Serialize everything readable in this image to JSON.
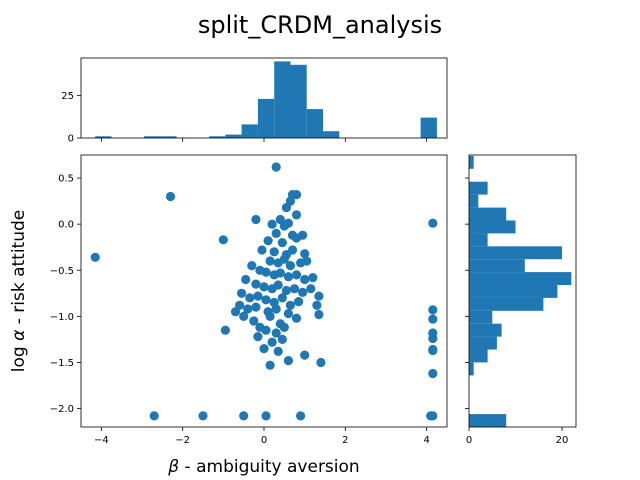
{
  "title": "split_CRDM_analysis",
  "colors": {
    "accent": "#1f77b4",
    "axes": "#000000",
    "background": "#ffffff"
  },
  "chart_data": [
    {
      "type": "scatter",
      "name": "main",
      "xlabel_symbol": "β",
      "xlabel_text": " - ambiguity aversion",
      "ylabel_prefix": "log ",
      "ylabel_symbol": "α",
      "ylabel_text": " - risk attitude",
      "xlim": [
        -4.5,
        4.5
      ],
      "ylim": [
        -2.2,
        0.75
      ],
      "xticks": [
        -4,
        -2,
        0,
        2,
        4
      ],
      "xtick_labels": [
        "−4",
        "−2",
        "0",
        "2",
        "4"
      ],
      "yticks": [
        0.5,
        0.0,
        -0.5,
        -1.0,
        -1.5,
        -2.0
      ],
      "ytick_labels": [
        "0.5",
        "0.0",
        "−0.5",
        "−1.0",
        "−1.5",
        "−2.0"
      ],
      "grid": false,
      "points": [
        [
          -4.15,
          -0.36
        ],
        [
          -2.3,
          0.3
        ],
        [
          -2.7,
          -2.08
        ],
        [
          -1.5,
          -2.08
        ],
        [
          -0.5,
          -2.08
        ],
        [
          0.05,
          -2.08
        ],
        [
          0.9,
          -2.08
        ],
        [
          -1.0,
          -0.17
        ],
        [
          -0.95,
          -1.15
        ],
        [
          0.3,
          0.62
        ],
        [
          4.15,
          0.01
        ],
        [
          4.15,
          -0.93
        ],
        [
          4.15,
          -1.03
        ],
        [
          4.15,
          -1.18
        ],
        [
          4.15,
          -1.24
        ],
        [
          4.15,
          -1.36
        ],
        [
          4.15,
          -1.37
        ],
        [
          4.15,
          -1.62
        ],
        [
          4.15,
          -2.08
        ],
        [
          4.1,
          -2.08
        ],
        [
          -0.2,
          0.05
        ],
        [
          0.55,
          0.18
        ],
        [
          0.7,
          0.32
        ],
        [
          0.8,
          0.32
        ],
        [
          0.65,
          0.25
        ],
        [
          0.8,
          0.1
        ],
        [
          0.2,
          0.0
        ],
        [
          0.4,
          0.05
        ],
        [
          0.5,
          -0.02
        ],
        [
          0.6,
          0.01
        ],
        [
          0.3,
          -0.1
        ],
        [
          0.7,
          -0.12
        ],
        [
          0.1,
          -0.18
        ],
        [
          0.45,
          -0.2
        ],
        [
          0.8,
          -0.15
        ],
        [
          0.95,
          -0.12
        ],
        [
          -0.05,
          -0.28
        ],
        [
          0.25,
          -0.3
        ],
        [
          0.55,
          -0.33
        ],
        [
          0.7,
          -0.28
        ],
        [
          1.0,
          -0.32
        ],
        [
          0.15,
          -0.4
        ],
        [
          0.35,
          -0.42
        ],
        [
          0.5,
          -0.38
        ],
        [
          0.65,
          -0.45
        ],
        [
          0.9,
          -0.42
        ],
        [
          1.05,
          -0.4
        ],
        [
          -0.3,
          -0.45
        ],
        [
          -0.1,
          -0.5
        ],
        [
          0.05,
          -0.52
        ],
        [
          0.25,
          -0.55
        ],
        [
          0.4,
          -0.53
        ],
        [
          0.6,
          -0.57
        ],
        [
          0.8,
          -0.55
        ],
        [
          1.0,
          -0.6
        ],
        [
          1.2,
          -0.58
        ],
        [
          -0.45,
          -0.6
        ],
        [
          -0.2,
          -0.65
        ],
        [
          0.0,
          -0.68
        ],
        [
          0.2,
          -0.7
        ],
        [
          0.35,
          -0.66
        ],
        [
          0.55,
          -0.72
        ],
        [
          0.75,
          -0.7
        ],
        [
          0.95,
          -0.74
        ],
        [
          1.15,
          -0.7
        ],
        [
          -0.55,
          -0.75
        ],
        [
          -0.35,
          -0.8
        ],
        [
          -0.15,
          -0.78
        ],
        [
          0.05,
          -0.82
        ],
        [
          0.25,
          -0.85
        ],
        [
          0.45,
          -0.8
        ],
        [
          0.65,
          -0.88
        ],
        [
          0.85,
          -0.84
        ],
        [
          1.35,
          -0.78
        ],
        [
          -0.6,
          -0.88
        ],
        [
          -0.4,
          -0.92
        ],
        [
          -0.2,
          -0.9
        ],
        [
          0.1,
          -0.95
        ],
        [
          0.3,
          -0.92
        ],
        [
          0.6,
          -0.97
        ],
        [
          1.3,
          -0.88
        ],
        [
          -0.7,
          -0.95
        ],
        [
          -0.5,
          -1.0
        ],
        [
          -0.25,
          -1.05
        ],
        [
          0.15,
          -1.0
        ],
        [
          0.4,
          -1.08
        ],
        [
          0.8,
          -1.02
        ],
        [
          1.35,
          -0.98
        ],
        [
          -0.1,
          -1.12
        ],
        [
          0.05,
          -1.15
        ],
        [
          0.3,
          -1.18
        ],
        [
          0.5,
          -1.12
        ],
        [
          -0.15,
          -1.22
        ],
        [
          0.2,
          -1.28
        ],
        [
          0.45,
          -1.25
        ],
        [
          0.0,
          -1.35
        ],
        [
          0.6,
          -1.48
        ],
        [
          0.15,
          -1.53
        ],
        [
          1.0,
          -1.42
        ],
        [
          1.4,
          -1.5
        ],
        [
          0.35,
          -1.38
        ]
      ]
    },
    {
      "type": "bar",
      "name": "top_histogram",
      "orientation": "vertical",
      "xlim": [
        -4.5,
        4.5
      ],
      "ylim": [
        0,
        47
      ],
      "yticks": [
        0,
        25
      ],
      "ytick_labels": [
        "0",
        "25"
      ],
      "xticks": [
        -4,
        -2,
        0,
        2,
        4
      ],
      "bin_edges": [
        -4.15,
        -3.75,
        -3.35,
        -2.95,
        -2.55,
        -2.15,
        -1.75,
        -1.35,
        -0.95,
        -0.55,
        -0.15,
        0.25,
        0.65,
        1.05,
        1.45,
        1.85,
        2.25,
        2.65,
        3.05,
        3.45,
        3.85,
        4.25
      ],
      "values": [
        1,
        0,
        0,
        1,
        1,
        0,
        0,
        1,
        2,
        8,
        23,
        45,
        43,
        17,
        4,
        0,
        0,
        0,
        0,
        0,
        12
      ]
    },
    {
      "type": "bar",
      "name": "right_histogram",
      "orientation": "horizontal",
      "ylim": [
        -2.2,
        0.75
      ],
      "xlim": [
        0,
        23
      ],
      "xticks": [
        0,
        20
      ],
      "xtick_labels": [
        "0",
        "20"
      ],
      "yticks": [
        0.5,
        0.0,
        -0.5,
        -1.0,
        -1.5,
        -2.0
      ],
      "bin_edges": [
        -2.2,
        -2.06,
        -1.92,
        -1.78,
        -1.64,
        -1.5,
        -1.36,
        -1.22,
        -1.08,
        -0.94,
        -0.8,
        -0.66,
        -0.52,
        -0.38,
        -0.24,
        -0.1,
        0.04,
        0.18,
        0.32,
        0.46,
        0.6,
        0.74
      ],
      "values": [
        8,
        0,
        0,
        0,
        1,
        4,
        6,
        7,
        5,
        16,
        19,
        22,
        12,
        20,
        4,
        10,
        8,
        2,
        4,
        0,
        1
      ]
    }
  ]
}
